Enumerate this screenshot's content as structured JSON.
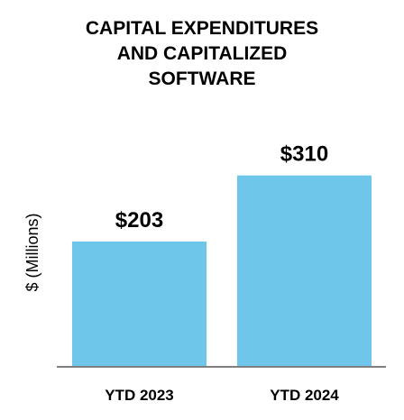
{
  "chart_data": {
    "type": "bar",
    "title_lines": [
      "CAPITAL EXPENDITURES",
      "AND CAPITALIZED",
      "SOFTWARE"
    ],
    "ylabel": "$ (Millions)",
    "xlabel": "",
    "categories": [
      "YTD 2023",
      "YTD 2024"
    ],
    "values": [
      203,
      310
    ],
    "value_labels": [
      "$203",
      "$310"
    ],
    "ylim": [
      0,
      340
    ],
    "grid": false,
    "legend": "none",
    "bar_color": "#6ec6ea",
    "axis_color": "#7f7f7f"
  }
}
